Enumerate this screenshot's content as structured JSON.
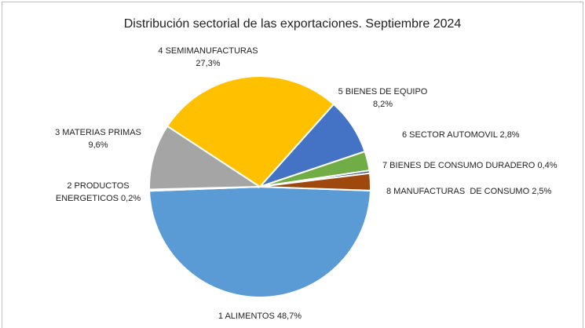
{
  "chart_data": {
    "type": "pie",
    "title": "Distribución sectorial de las exportaciones. Septiembre 2024",
    "categories": [
      "1 ALIMENTOS",
      "2 PRODUCTOS ENERGETICOS",
      "3 MATERIAS PRIMAS",
      "4 SEMIMANUFACTURAS",
      "5 BIENES DE EQUIPO",
      "6 SECTOR AUTOMOVIL",
      "7 BIENES DE CONSUMO DURADERO",
      "8 MANUFACTURAS  DE CONSUMO"
    ],
    "values": [
      48.7,
      0.2,
      9.6,
      27.3,
      8.2,
      2.8,
      0.4,
      2.5
    ],
    "value_labels": [
      "48,7%",
      "0,2%",
      "9,6%",
      "27,3%",
      "8,2%",
      "2,8%",
      "0,4%",
      "2,5%"
    ],
    "colors": [
      "#5b9bd5",
      "#ed7d31",
      "#a5a5a5",
      "#ffc000",
      "#4472c4",
      "#70ad47",
      "#264478",
      "#9e480e"
    ]
  }
}
